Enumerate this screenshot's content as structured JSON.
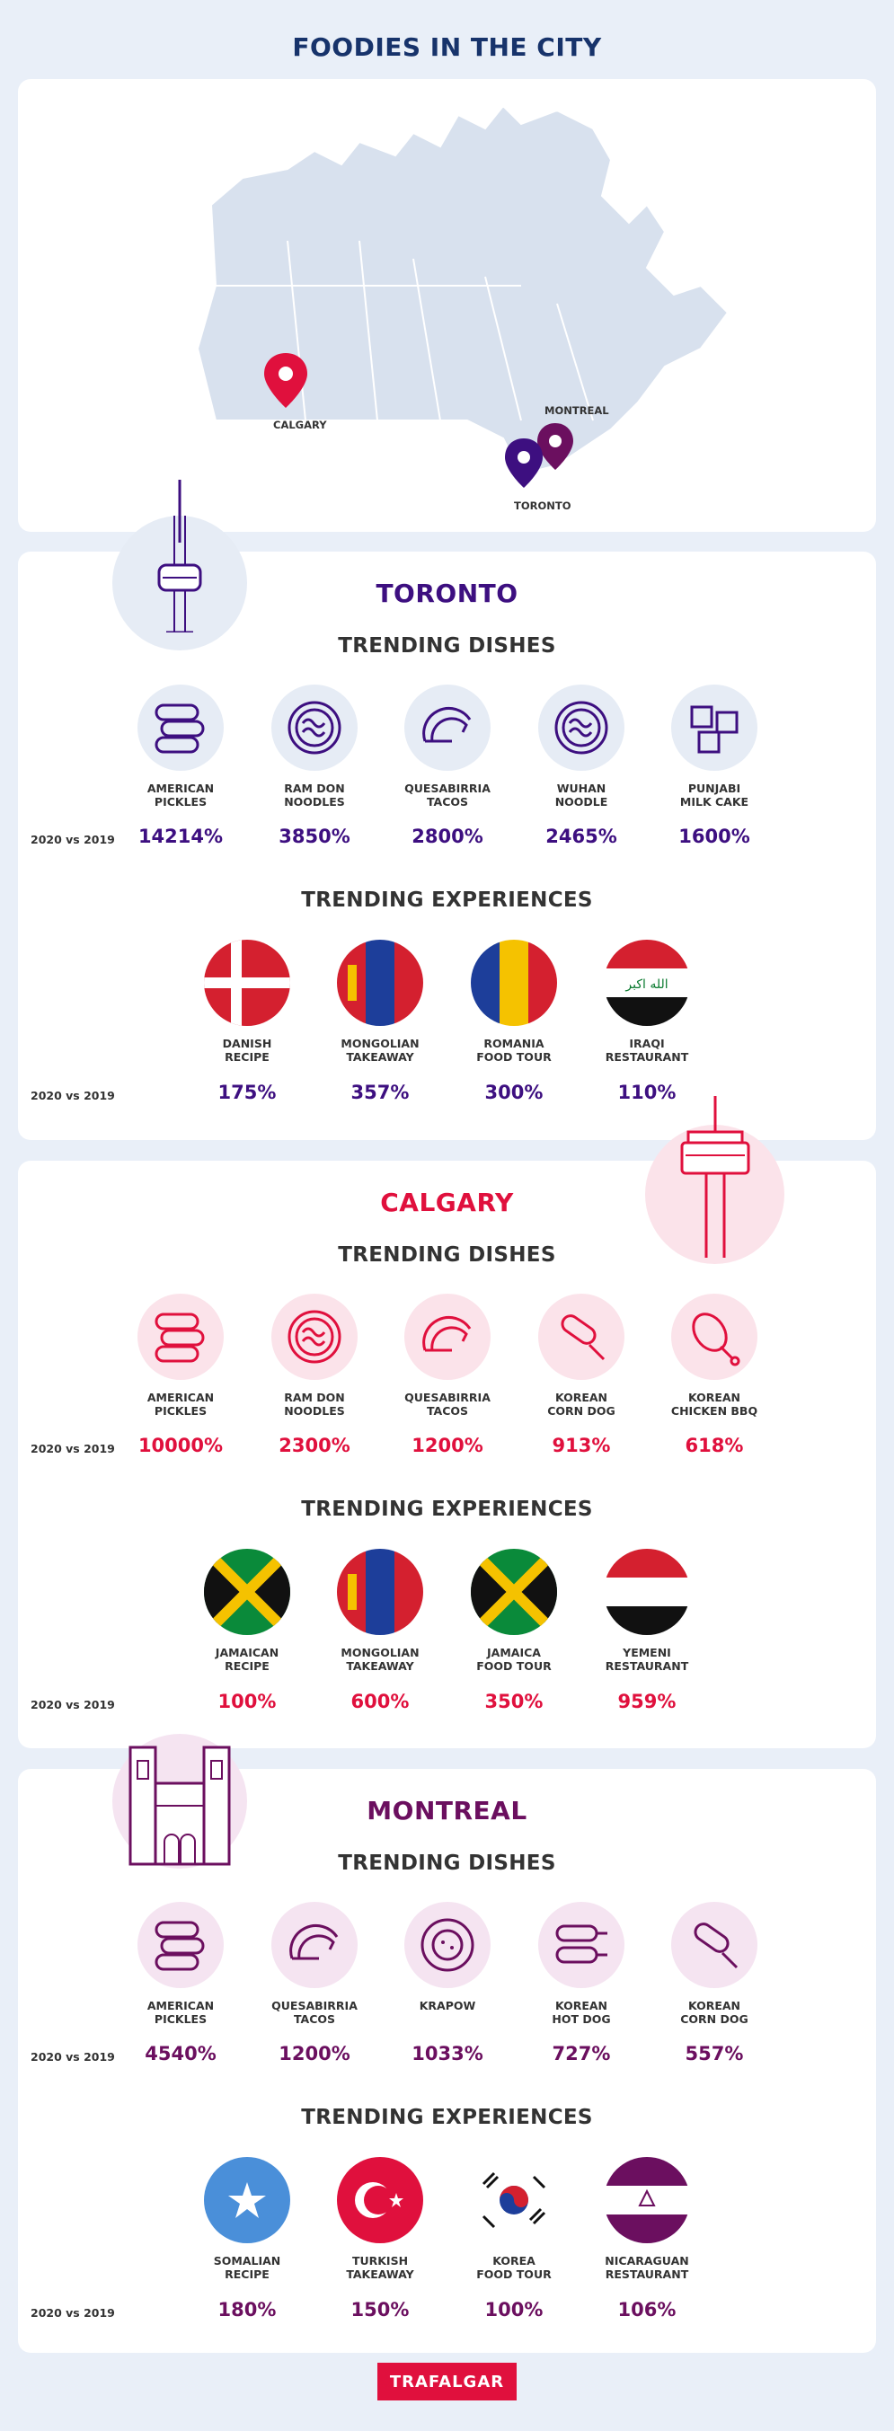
{
  "title": "FOODIES IN THE CITY",
  "map": {
    "pins": [
      "CALGARY",
      "MONTREAL",
      "TORONTO"
    ]
  },
  "comparison": "2020 vs 2019",
  "section_titles": {
    "dishes": "TRENDING DISHES",
    "experiences": "TRENDING EXPERIENCES"
  },
  "colors": {
    "toronto": "#3d0f80",
    "calgary": "#e0103d",
    "montreal": "#6b0f5f",
    "title": "#17336b"
  },
  "toronto": {
    "name": "TORONTO",
    "dishes": [
      {
        "label": "AMERICAN\nPICKLES",
        "value": "14214%",
        "icon": "pickles-icon"
      },
      {
        "label": "RAM DON\nNOODLES",
        "value": "3850%",
        "icon": "noodle-bowl-icon"
      },
      {
        "label": "QUESABIRRIA\nTACOS",
        "value": "2800%",
        "icon": "taco-icon"
      },
      {
        "label": "WUHAN\nNOODLE",
        "value": "2465%",
        "icon": "noodle-bowl-icon"
      },
      {
        "label": "PUNJABI\nMILK CAKE",
        "value": "1600%",
        "icon": "milk-cake-icon"
      }
    ],
    "experiences": [
      {
        "label": "DANISH\nRECIPE",
        "value": "175%",
        "icon": "denmark-flag-icon"
      },
      {
        "label": "MONGOLIAN\nTAKEAWAY",
        "value": "357%",
        "icon": "mongolia-flag-icon"
      },
      {
        "label": "ROMANIA\nFOOD TOUR",
        "value": "300%",
        "icon": "romania-flag-icon"
      },
      {
        "label": "IRAQI\nRESTAURANT",
        "value": "110%",
        "icon": "iraq-flag-icon"
      }
    ]
  },
  "calgary": {
    "name": "CALGARY",
    "dishes": [
      {
        "label": "AMERICAN\nPICKLES",
        "value": "10000%",
        "icon": "pickles-icon"
      },
      {
        "label": "RAM DON\nNOODLES",
        "value": "2300%",
        "icon": "noodle-bowl-icon"
      },
      {
        "label": "QUESABIRRIA\nTACOS",
        "value": "1200%",
        "icon": "taco-icon"
      },
      {
        "label": "KOREAN\nCORN DOG",
        "value": "913%",
        "icon": "corn-dog-icon"
      },
      {
        "label": "KOREAN\nCHICKEN BBQ",
        "value": "618%",
        "icon": "chicken-leg-icon"
      }
    ],
    "experiences": [
      {
        "label": "JAMAICAN\nRECIPE",
        "value": "100%",
        "icon": "jamaica-flag-icon"
      },
      {
        "label": "MONGOLIAN\nTAKEAWAY",
        "value": "600%",
        "icon": "mongolia-flag-icon"
      },
      {
        "label": "JAMAICA\nFOOD TOUR",
        "value": "350%",
        "icon": "jamaica-flag-icon"
      },
      {
        "label": "YEMENI\nRESTAURANT",
        "value": "959%",
        "icon": "yemen-flag-icon"
      }
    ]
  },
  "montreal": {
    "name": "MONTREAL",
    "dishes": [
      {
        "label": "AMERICAN\nPICKLES",
        "value": "4540%",
        "icon": "pickles-icon"
      },
      {
        "label": "QUESABIRRIA\nTACOS",
        "value": "1200%",
        "icon": "taco-icon"
      },
      {
        "label": "KRAPOW",
        "value": "1033%",
        "icon": "krapow-plate-icon"
      },
      {
        "label": "KOREAN\nHOT DOG",
        "value": "727%",
        "icon": "hot-dog-icon"
      },
      {
        "label": "KOREAN\nCORN DOG",
        "value": "557%",
        "icon": "corn-dog-icon"
      }
    ],
    "experiences": [
      {
        "label": "SOMALIAN\nRECIPE",
        "value": "180%",
        "icon": "somalia-flag-icon"
      },
      {
        "label": "TURKISH\nTAKEAWAY",
        "value": "150%",
        "icon": "turkey-flag-icon"
      },
      {
        "label": "KOREA\nFOOD TOUR",
        "value": "100%",
        "icon": "korea-flag-icon"
      },
      {
        "label": "NICARAGUAN\nRESTAURANT",
        "value": "106%",
        "icon": "nicaragua-flag-icon"
      }
    ]
  },
  "brand": "TRAFALGAR"
}
